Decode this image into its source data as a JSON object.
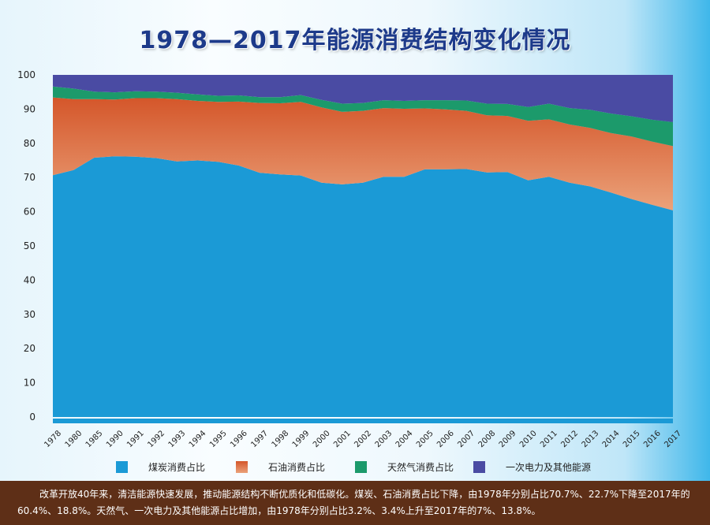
{
  "title": "1978—2017年能源消费结构变化情况",
  "colors": {
    "coal": "#1b9ad6",
    "oil": "#d4562a",
    "oil_light": "#eba27a",
    "gas": "#1c9a6b",
    "other": "#4a4ba3"
  },
  "chart_data": {
    "type": "area",
    "stacked": true,
    "x": [
      "1978",
      "1980",
      "1985",
      "1990",
      "1991",
      "1992",
      "1993",
      "1994",
      "1995",
      "1996",
      "1997",
      "1998",
      "1999",
      "2000",
      "2001",
      "2002",
      "2003",
      "2004",
      "2005",
      "2006",
      "2007",
      "2008",
      "2009",
      "2010",
      "2011",
      "2012",
      "2013",
      "2014",
      "2015",
      "2016",
      "2017"
    ],
    "ylim": [
      0,
      100
    ],
    "yticks": [
      0,
      10,
      20,
      30,
      40,
      50,
      60,
      70,
      80,
      90,
      100
    ],
    "grid": false,
    "legend_position": "bottom",
    "series": [
      {
        "name": "煤炭消费占比",
        "color_key": "coal",
        "values": [
          70.7,
          72.2,
          75.8,
          76.2,
          76.1,
          75.7,
          74.7,
          75.0,
          74.6,
          73.5,
          71.4,
          70.9,
          70.6,
          68.5,
          68.0,
          68.5,
          70.2,
          70.2,
          72.4,
          72.4,
          72.5,
          71.5,
          71.6,
          69.2,
          70.2,
          68.5,
          67.4,
          65.6,
          63.7,
          62.0,
          60.4
        ]
      },
      {
        "name": "石油消费占比",
        "color_key": "oil",
        "values": [
          22.7,
          20.7,
          17.1,
          16.6,
          17.1,
          17.5,
          18.2,
          17.4,
          17.5,
          18.7,
          20.4,
          20.8,
          21.5,
          22.0,
          21.2,
          21.0,
          20.1,
          19.9,
          17.8,
          17.5,
          17.0,
          16.7,
          16.4,
          17.4,
          16.8,
          17.0,
          17.1,
          17.4,
          18.3,
          18.5,
          18.8
        ]
      },
      {
        "name": "天然气消费占比",
        "color_key": "gas",
        "values": [
          3.2,
          3.1,
          2.2,
          2.1,
          2.0,
          1.9,
          1.9,
          1.9,
          1.8,
          1.8,
          1.7,
          1.8,
          2.0,
          2.2,
          2.4,
          2.3,
          2.3,
          2.3,
          2.4,
          2.7,
          3.0,
          3.4,
          3.5,
          4.0,
          4.6,
          4.8,
          5.3,
          5.7,
          5.9,
          6.4,
          7.0
        ]
      },
      {
        "name": "一次电力及其他能源",
        "color_key": "other",
        "values": [
          3.4,
          4.0,
          4.9,
          5.1,
          4.8,
          4.9,
          5.2,
          5.7,
          6.1,
          6.0,
          6.5,
          6.5,
          5.9,
          7.3,
          8.4,
          8.2,
          7.4,
          7.6,
          7.4,
          7.4,
          7.5,
          8.4,
          8.5,
          9.4,
          8.4,
          9.7,
          10.2,
          11.3,
          12.1,
          13.1,
          13.8
        ]
      }
    ]
  },
  "footer": {
    "text": "改革开放40年来，清洁能源快速发展，推动能源结构不断优质化和低碳化。煤炭、石油消费占比下降，由1978年分别占比70.7%、22.7%下降至2017年的60.4%、18.8%。天然气、一次电力及其他能源占比增加，由1978年分别占比3.2%、3.4%上升至2017年的7%、13.8%。"
  }
}
